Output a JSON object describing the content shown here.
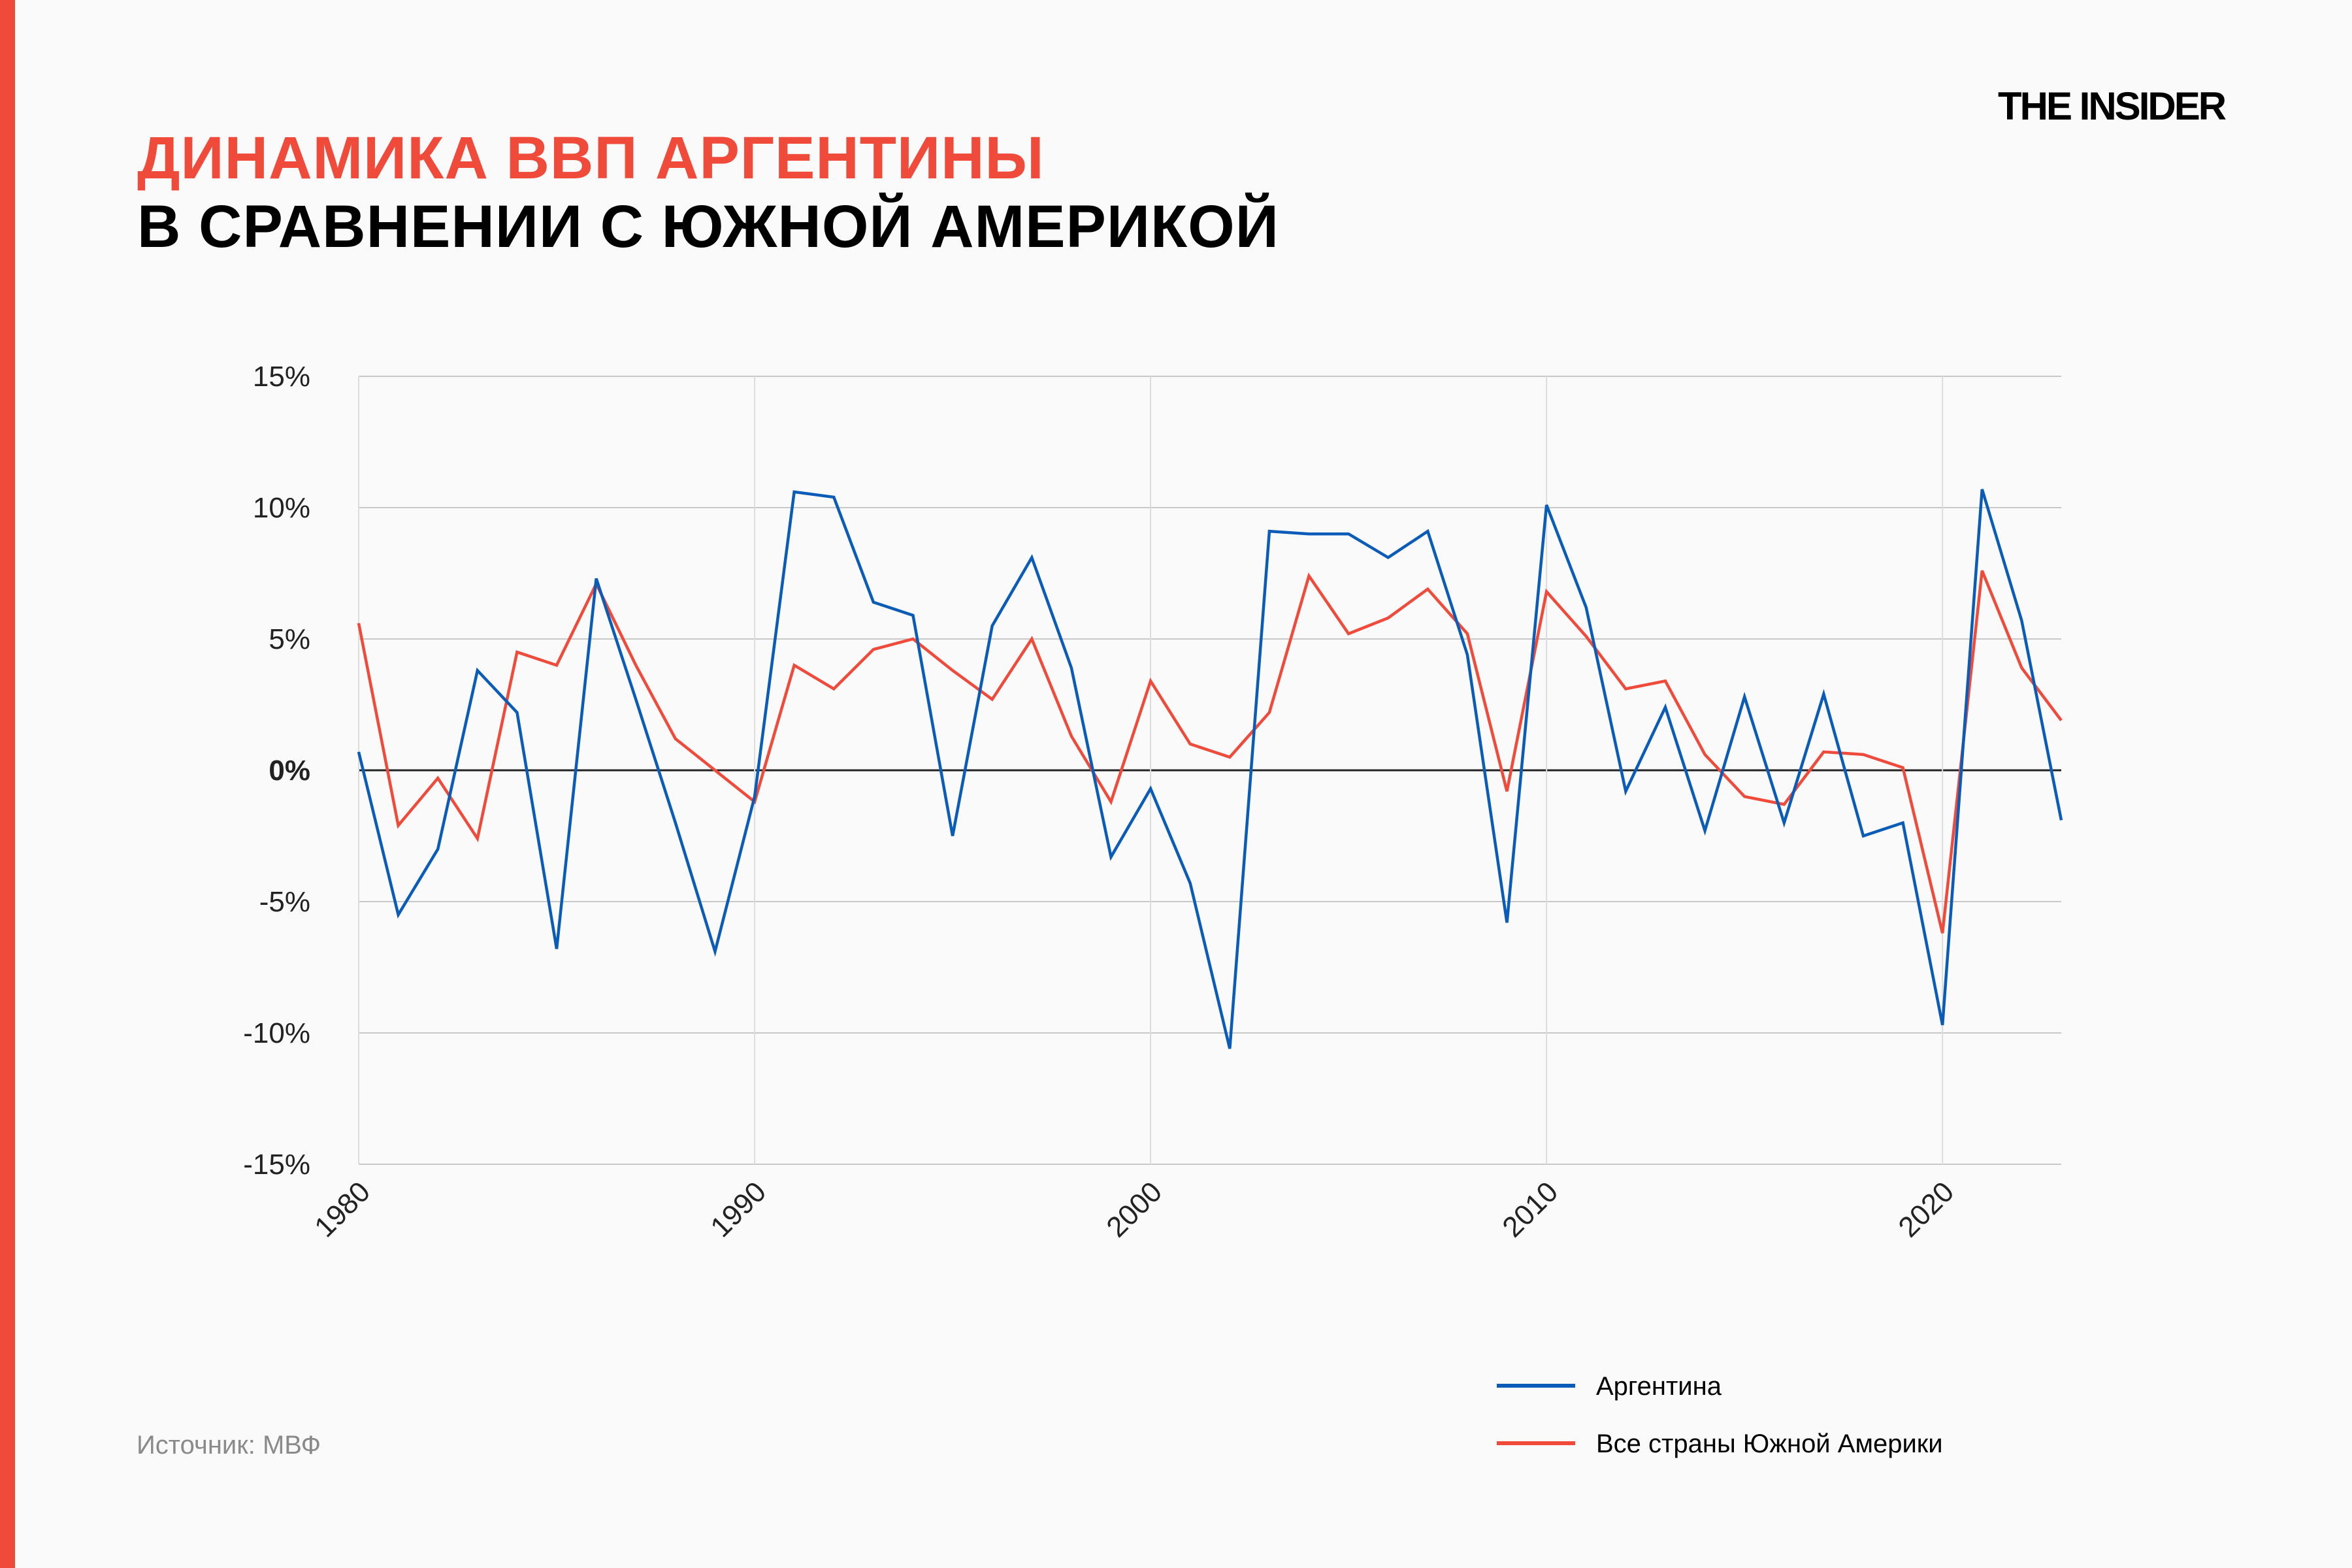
{
  "header": {
    "title_line1": "ДИНАМИКА ВВП АРГЕНТИНЫ",
    "title_line2": "В СРАВНЕНИИ С ЮЖНОЙ АМЕРИКОЙ",
    "logo": "THE INSIDER"
  },
  "source": "Источник: МВФ",
  "colors": {
    "accent": "#f04a3a",
    "argentina": "#0a5cb8",
    "south_america": "#f04a3a"
  },
  "chart_data": {
    "type": "line",
    "title": "",
    "xlabel": "",
    "ylabel": "",
    "xlim": [
      1980,
      2023
    ],
    "ylim": [
      -15,
      15
    ],
    "grid": true,
    "legend_position": "bottom-right",
    "x_ticks": [
      1980,
      1990,
      2000,
      2010,
      2020
    ],
    "x_tick_labels": [
      "1980",
      "1990",
      "2000",
      "2010",
      "2020"
    ],
    "y_ticks": [
      15,
      10,
      5,
      0,
      -5,
      -10,
      -15
    ],
    "y_tick_labels": [
      "15%",
      "10%",
      "5%",
      "0%",
      "-5%",
      "-10%",
      "-15%"
    ],
    "x": [
      1980,
      1981,
      1982,
      1983,
      1984,
      1985,
      1986,
      1987,
      1988,
      1989,
      1990,
      1991,
      1992,
      1993,
      1994,
      1995,
      1996,
      1997,
      1998,
      1999,
      2000,
      2001,
      2002,
      2003,
      2004,
      2005,
      2006,
      2007,
      2008,
      2009,
      2010,
      2011,
      2012,
      2013,
      2014,
      2015,
      2016,
      2017,
      2018,
      2019,
      2020,
      2021,
      2022,
      2023
    ],
    "series": [
      {
        "name": "Аргентина",
        "color": "#0a5cb8",
        "values": [
          0.7,
          -5.5,
          -3.0,
          3.8,
          2.2,
          -6.8,
          7.3,
          2.7,
          -2.0,
          -6.9,
          -1.0,
          10.6,
          10.4,
          6.4,
          5.9,
          -2.5,
          5.5,
          8.1,
          3.9,
          -3.3,
          -0.7,
          -4.3,
          -10.6,
          9.1,
          9.0,
          9.0,
          8.1,
          9.1,
          4.4,
          -5.8,
          10.1,
          6.2,
          -0.8,
          2.4,
          -2.3,
          2.8,
          -2.0,
          2.9,
          -2.5,
          -2.0,
          -9.7,
          10.7,
          5.7,
          -1.9
        ]
      },
      {
        "name": "Все страны Южной Америки",
        "color": "#f04a3a",
        "values": [
          5.6,
          -2.1,
          -0.3,
          -2.6,
          4.5,
          4.0,
          7.1,
          4.0,
          1.2,
          0.0,
          -1.2,
          4.0,
          3.1,
          4.6,
          5.0,
          3.8,
          2.7,
          5.0,
          1.3,
          -1.2,
          3.4,
          1.0,
          0.5,
          2.2,
          7.4,
          5.2,
          5.8,
          6.9,
          5.2,
          -0.8,
          6.8,
          5.1,
          3.1,
          3.4,
          0.6,
          -1.0,
          -1.3,
          0.7,
          0.6,
          0.1,
          -6.2,
          7.6,
          3.9,
          1.9
        ]
      }
    ]
  }
}
